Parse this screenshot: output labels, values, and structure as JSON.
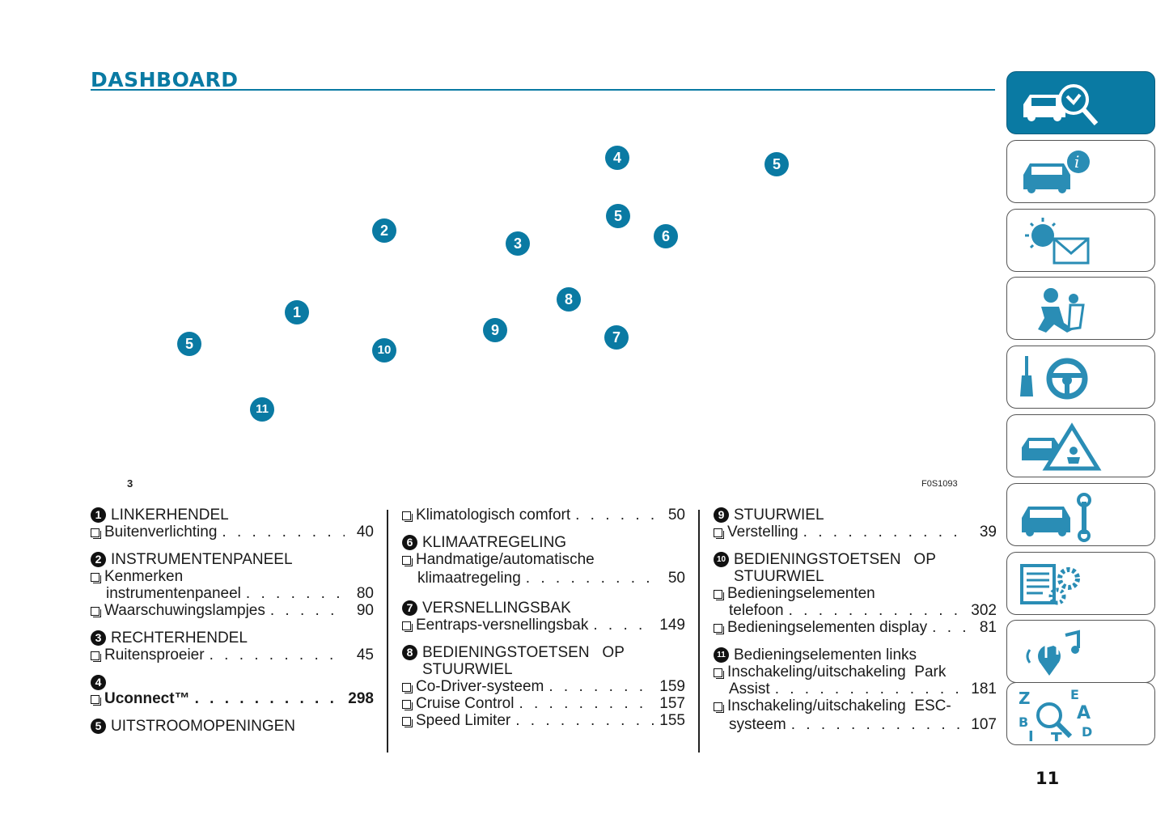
{
  "header": {
    "title": "DASHBOARD"
  },
  "figure": {
    "callouts": [
      "4",
      "5",
      "2",
      "3",
      "5",
      "6",
      "8",
      "1",
      "9",
      "7",
      "5",
      "10",
      "11"
    ],
    "figure_number": "3",
    "figure_code": "F0S1093"
  },
  "columns": {
    "col1": {
      "g1": {
        "num": "1",
        "title": "LINKERHENDEL",
        "e1": {
          "label": "Buitenverlichting",
          "page": "40"
        }
      },
      "g2": {
        "num": "2",
        "title": "INSTRUMENTENPANEEL",
        "e1": {
          "label": "Kenmerken",
          "cont": "instrumentenpaneel",
          "page": "80"
        },
        "e2": {
          "label": "Waarschuwingslampjes",
          "page": "90"
        }
      },
      "g3": {
        "num": "3",
        "title": "RECHTERHENDEL",
        "e1": {
          "label": "Ruitensproeier",
          "page": "45"
        }
      },
      "g4": {
        "num": "4",
        "e1": {
          "label": "Uconnect™",
          "page": "298"
        }
      },
      "g5": {
        "num": "5",
        "title": "UITSTROOMOPENINGEN"
      }
    },
    "col2": {
      "e0": {
        "label": "Klimatologisch comfort",
        "page": "50"
      },
      "g6": {
        "num": "6",
        "title": "KLIMAATREGELING",
        "e1": {
          "label": "Handmatige/automatische",
          "cont": "klimaatregeling",
          "page": "50"
        }
      },
      "g7": {
        "num": "7",
        "title": "VERSNELLINGSBAK",
        "e1": {
          "label": "Eentraps-versnellingsbak",
          "page": "149"
        }
      },
      "g8": {
        "num": "8",
        "title": "BEDIENINGSTOETSEN   OP",
        "title2": "STUURWIEL",
        "e1": {
          "label": "Co-Driver-systeem",
          "page": "159"
        },
        "e2": {
          "label": "Cruise Control",
          "page": "157"
        },
        "e3": {
          "label": "Speed Limiter",
          "page": "155"
        }
      }
    },
    "col3": {
      "g9": {
        "num": "9",
        "title": "STUURWIEL",
        "e1": {
          "label": "Verstelling",
          "page": "39"
        }
      },
      "g10": {
        "num": "10",
        "title": "BEDIENINGSTOETSEN   OP",
        "title2": "STUURWIEL",
        "e1": {
          "label": "Bedieningselementen",
          "cont": "telefoon",
          "page": "302"
        },
        "e2": {
          "label": "Bedieningselementen display",
          "page": "81"
        }
      },
      "g11": {
        "num": "11",
        "title": "Bedieningselementen links",
        "e1": {
          "label": "Inschakeling/uitschakeling  Park",
          "cont": "Assist",
          "page": "181"
        },
        "e2": {
          "label": "Inschakeling/uitschakeling  ESC-",
          "cont": "systeem",
          "page": "107"
        }
      }
    }
  },
  "tabs": [
    {
      "icon": "car-search-icon",
      "active": true
    },
    {
      "icon": "car-info-icon"
    },
    {
      "icon": "lights-warning-icon"
    },
    {
      "icon": "airbag-safety-icon"
    },
    {
      "icon": "key-steering-icon"
    },
    {
      "icon": "emergency-warning-icon"
    },
    {
      "icon": "car-maintenance-icon"
    },
    {
      "icon": "technical-data-icon"
    },
    {
      "icon": "multimedia-icon"
    },
    {
      "icon": "index-search-icon"
    }
  ],
  "colors": {
    "accent": "#0a7aa3"
  },
  "footer": {
    "page_number": "11"
  }
}
